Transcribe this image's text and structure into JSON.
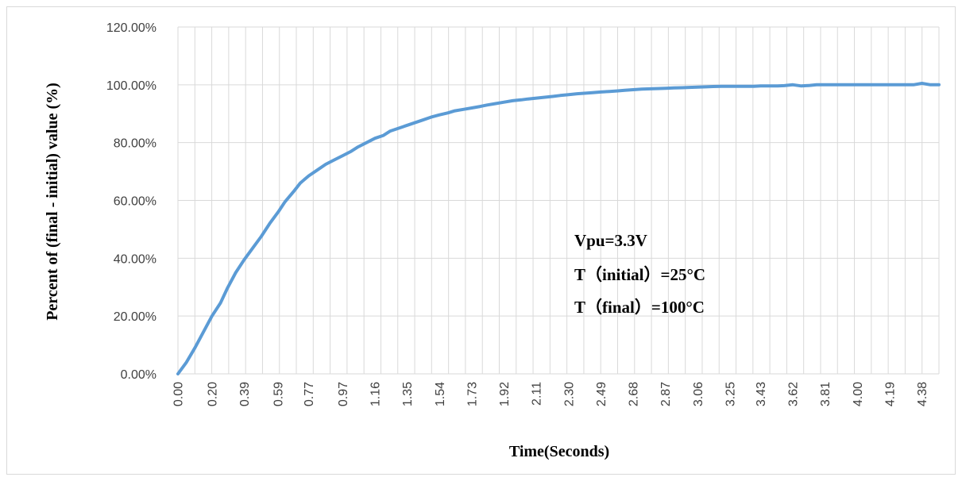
{
  "chart_data": {
    "type": "line",
    "xlabel": "Time(Seconds)",
    "ylabel": "Percent of (final - initial) value (%)",
    "y_tick_labels": [
      "0.00%",
      "20.00%",
      "40.00%",
      "60.00%",
      "80.00%",
      "100.00%",
      "120.00%"
    ],
    "ylim": [
      0,
      120
    ],
    "xlim": [
      0,
      4.48
    ],
    "x_tick_labels": [
      "0.00",
      "0.20",
      "0.39",
      "0.59",
      "0.77",
      "0.97",
      "1.16",
      "1.35",
      "1.54",
      "1.73",
      "1.92",
      "2.11",
      "2.30",
      "2.49",
      "2.68",
      "2.87",
      "3.06",
      "3.25",
      "3.43",
      "3.62",
      "3.81",
      "4.00",
      "4.19",
      "4.38"
    ],
    "grid": true,
    "line_color": "#5b9bd5",
    "annotations": [
      "Vpu=3.3V",
      "T（initial）=25°C",
      "T（final）=100°C"
    ],
    "series": [
      {
        "x": [
          0.0,
          0.05,
          0.1,
          0.15,
          0.2,
          0.25,
          0.29,
          0.34,
          0.39,
          0.44,
          0.49,
          0.54,
          0.59,
          0.63,
          0.68,
          0.72,
          0.77,
          0.82,
          0.87,
          0.92,
          0.97,
          1.02,
          1.06,
          1.11,
          1.16,
          1.21,
          1.25,
          1.3,
          1.35,
          1.4,
          1.44,
          1.49,
          1.54,
          1.59,
          1.63,
          1.68,
          1.73,
          1.78,
          1.82,
          1.87,
          1.92,
          1.97,
          2.02,
          2.06,
          2.11,
          2.16,
          2.21,
          2.25,
          2.3,
          2.35,
          2.4,
          2.44,
          2.49,
          2.54,
          2.59,
          2.63,
          2.68,
          2.73,
          2.78,
          2.82,
          2.87,
          2.92,
          2.97,
          3.01,
          3.06,
          3.11,
          3.15,
          3.2,
          3.25,
          3.3,
          3.34,
          3.39,
          3.43,
          3.48,
          3.53,
          3.57,
          3.62,
          3.67,
          3.72,
          3.76,
          3.81,
          3.86,
          3.91,
          3.95,
          4.0,
          4.05,
          4.1,
          4.14,
          4.19,
          4.24,
          4.29,
          4.33,
          4.38,
          4.43,
          4.48
        ],
        "y": [
          0.0,
          4.0,
          9.0,
          14.5,
          20.0,
          24.5,
          29.5,
          35.0,
          39.5,
          43.5,
          47.5,
          52.0,
          56.0,
          59.5,
          63.0,
          66.0,
          68.5,
          70.5,
          72.5,
          74.0,
          75.5,
          77.0,
          78.5,
          80.0,
          81.5,
          82.5,
          84.0,
          85.0,
          86.0,
          87.0,
          87.8,
          88.8,
          89.6,
          90.3,
          91.0,
          91.5,
          92.0,
          92.5,
          93.0,
          93.5,
          94.0,
          94.5,
          94.8,
          95.1,
          95.4,
          95.7,
          96.0,
          96.3,
          96.6,
          96.9,
          97.1,
          97.3,
          97.5,
          97.7,
          97.9,
          98.1,
          98.3,
          98.5,
          98.6,
          98.7,
          98.8,
          98.9,
          99.0,
          99.1,
          99.2,
          99.3,
          99.4,
          99.5,
          99.5,
          99.5,
          99.5,
          99.5,
          99.6,
          99.6,
          99.6,
          99.7,
          100.0,
          99.6,
          99.8,
          100.0,
          100.0,
          100.0,
          100.0,
          100.0,
          100.0,
          100.0,
          100.0,
          100.0,
          100.0,
          100.0,
          100.0,
          100.0,
          100.5,
          100.0,
          100.0
        ]
      }
    ]
  }
}
